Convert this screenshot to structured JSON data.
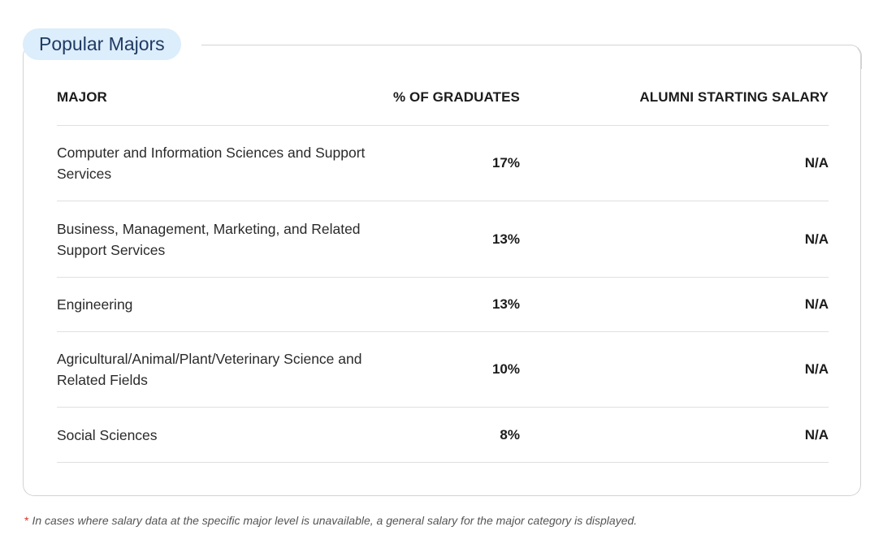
{
  "section": {
    "title": "Popular Majors"
  },
  "table": {
    "headers": {
      "major": "MAJOR",
      "pct_graduates": "% OF GRADUATES",
      "salary": "ALUMNI STARTING SALARY"
    },
    "rows": [
      {
        "major": "Computer and Information Sciences and Support Services",
        "pct": "17%",
        "salary": "N/A"
      },
      {
        "major": "Business, Management, Marketing, and Related Support Services",
        "pct": "13%",
        "salary": "N/A"
      },
      {
        "major": "Engineering",
        "pct": "13%",
        "salary": "N/A"
      },
      {
        "major": "Agricultural/Animal/Plant/Veterinary Science and Related Fields",
        "pct": "10%",
        "salary": "N/A"
      },
      {
        "major": "Social Sciences",
        "pct": "8%",
        "salary": "N/A"
      }
    ]
  },
  "footnote": {
    "marker": "*",
    "text": "In cases where salary data at the specific major level is unavailable, a general salary for the major category is displayed."
  },
  "colors": {
    "pill_background": "#dcedfb",
    "title_text": "#1f3a63",
    "footnote_marker": "#d9342b"
  }
}
